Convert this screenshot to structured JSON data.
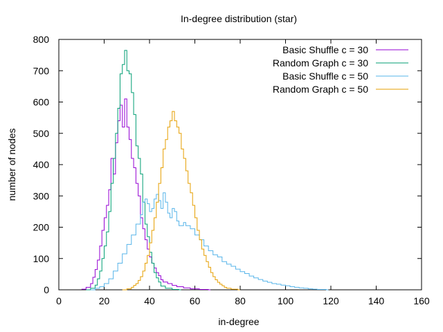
{
  "chart_data": {
    "type": "line",
    "title": "In-degree distribution (star)",
    "xlabel": "in-degree",
    "ylabel": "number of nodes",
    "xlim": [
      0,
      160
    ],
    "ylim": [
      0,
      800
    ],
    "x_ticks": [
      0,
      20,
      40,
      60,
      80,
      100,
      120,
      140,
      160
    ],
    "y_ticks": [
      0,
      100,
      200,
      300,
      400,
      500,
      600,
      700,
      800
    ],
    "grid": false,
    "legend_position": "top-right",
    "step": true,
    "series": [
      {
        "name": "Basic Shuffle c = 30",
        "color": "#9400d3",
        "points": [
          [
            10,
            2
          ],
          [
            12,
            8
          ],
          [
            14,
            20
          ],
          [
            15,
            40
          ],
          [
            16,
            65
          ],
          [
            17,
            95
          ],
          [
            18,
            140
          ],
          [
            19,
            190
          ],
          [
            20,
            230
          ],
          [
            21,
            270
          ],
          [
            22,
            320
          ],
          [
            23,
            420
          ],
          [
            24,
            370
          ],
          [
            25,
            470
          ],
          [
            26,
            540
          ],
          [
            27,
            590
          ],
          [
            28,
            520
          ],
          [
            29,
            610
          ],
          [
            30,
            520
          ],
          [
            31,
            480
          ],
          [
            32,
            420
          ],
          [
            33,
            390
          ],
          [
            34,
            340
          ],
          [
            35,
            300
          ],
          [
            36,
            230
          ],
          [
            37,
            195
          ],
          [
            38,
            160
          ],
          [
            39,
            130
          ],
          [
            40,
            105
          ],
          [
            41,
            85
          ],
          [
            42,
            70
          ],
          [
            43,
            55
          ],
          [
            44,
            45
          ],
          [
            45,
            32
          ],
          [
            46,
            25
          ],
          [
            48,
            20
          ],
          [
            50,
            14
          ],
          [
            52,
            10
          ],
          [
            55,
            6
          ],
          [
            58,
            3
          ],
          [
            62,
            1
          ],
          [
            66,
            0
          ]
        ]
      },
      {
        "name": "Random Graph c = 30",
        "color": "#009e73",
        "points": [
          [
            12,
            0
          ],
          [
            14,
            5
          ],
          [
            16,
            15
          ],
          [
            17,
            35
          ],
          [
            18,
            60
          ],
          [
            19,
            100
          ],
          [
            20,
            140
          ],
          [
            21,
            185
          ],
          [
            22,
            250
          ],
          [
            23,
            340
          ],
          [
            24,
            420
          ],
          [
            25,
            500
          ],
          [
            26,
            580
          ],
          [
            27,
            690
          ],
          [
            28,
            720
          ],
          [
            29,
            765
          ],
          [
            30,
            700
          ],
          [
            31,
            690
          ],
          [
            32,
            630
          ],
          [
            33,
            560
          ],
          [
            34,
            460
          ],
          [
            35,
            420
          ],
          [
            36,
            370
          ],
          [
            37,
            280
          ],
          [
            38,
            210
          ],
          [
            39,
            170
          ],
          [
            40,
            120
          ],
          [
            41,
            85
          ],
          [
            42,
            55
          ],
          [
            43,
            38
          ],
          [
            44,
            25
          ],
          [
            45,
            12
          ],
          [
            47,
            5
          ],
          [
            50,
            1
          ],
          [
            53,
            0
          ]
        ]
      },
      {
        "name": "Basic Shuffle c = 50",
        "color": "#56b4e9",
        "points": [
          [
            14,
            0
          ],
          [
            16,
            5
          ],
          [
            18,
            10
          ],
          [
            20,
            20
          ],
          [
            22,
            35
          ],
          [
            24,
            60
          ],
          [
            26,
            85
          ],
          [
            28,
            115
          ],
          [
            30,
            145
          ],
          [
            32,
            175
          ],
          [
            34,
            210
          ],
          [
            36,
            240
          ],
          [
            37,
            280
          ],
          [
            38,
            290
          ],
          [
            39,
            275
          ],
          [
            40,
            250
          ],
          [
            41,
            260
          ],
          [
            42,
            290
          ],
          [
            43,
            305
          ],
          [
            44,
            285
          ],
          [
            45,
            260
          ],
          [
            46,
            310
          ],
          [
            47,
            280
          ],
          [
            48,
            245
          ],
          [
            49,
            230
          ],
          [
            50,
            260
          ],
          [
            51,
            250
          ],
          [
            52,
            220
          ],
          [
            53,
            205
          ],
          [
            55,
            215
          ],
          [
            56,
            205
          ],
          [
            58,
            195
          ],
          [
            60,
            175
          ],
          [
            62,
            160
          ],
          [
            64,
            140
          ],
          [
            66,
            125
          ],
          [
            68,
            112
          ],
          [
            70,
            105
          ],
          [
            72,
            90
          ],
          [
            74,
            82
          ],
          [
            76,
            75
          ],
          [
            78,
            66
          ],
          [
            80,
            58
          ],
          [
            82,
            52
          ],
          [
            84,
            44
          ],
          [
            86,
            38
          ],
          [
            88,
            33
          ],
          [
            90,
            28
          ],
          [
            92,
            24
          ],
          [
            94,
            20
          ],
          [
            96,
            18
          ],
          [
            98,
            15
          ],
          [
            100,
            13
          ],
          [
            102,
            10
          ],
          [
            104,
            8
          ],
          [
            106,
            6
          ],
          [
            108,
            5
          ],
          [
            110,
            3
          ],
          [
            112,
            2
          ],
          [
            114,
            1
          ],
          [
            118,
            0
          ]
        ]
      },
      {
        "name": "Random Graph c = 50",
        "color": "#e69f00",
        "points": [
          [
            28,
            0
          ],
          [
            30,
            3
          ],
          [
            32,
            8
          ],
          [
            33,
            14
          ],
          [
            34,
            20
          ],
          [
            35,
            30
          ],
          [
            36,
            42
          ],
          [
            37,
            60
          ],
          [
            38,
            85
          ],
          [
            39,
            110
          ],
          [
            40,
            150
          ],
          [
            41,
            190
          ],
          [
            42,
            230
          ],
          [
            43,
            280
          ],
          [
            44,
            340
          ],
          [
            45,
            390
          ],
          [
            46,
            450
          ],
          [
            47,
            480
          ],
          [
            48,
            520
          ],
          [
            49,
            540
          ],
          [
            50,
            570
          ],
          [
            51,
            540
          ],
          [
            52,
            520
          ],
          [
            53,
            500
          ],
          [
            54,
            450
          ],
          [
            55,
            420
          ],
          [
            56,
            380
          ],
          [
            57,
            340
          ],
          [
            58,
            310
          ],
          [
            59,
            270
          ],
          [
            60,
            230
          ],
          [
            61,
            190
          ],
          [
            62,
            160
          ],
          [
            63,
            130
          ],
          [
            64,
            110
          ],
          [
            65,
            90
          ],
          [
            66,
            72
          ],
          [
            67,
            55
          ],
          [
            68,
            42
          ],
          [
            69,
            32
          ],
          [
            70,
            24
          ],
          [
            71,
            18
          ],
          [
            72,
            13
          ],
          [
            73,
            8
          ],
          [
            74,
            5
          ],
          [
            76,
            2
          ],
          [
            79,
            0
          ]
        ]
      }
    ]
  }
}
